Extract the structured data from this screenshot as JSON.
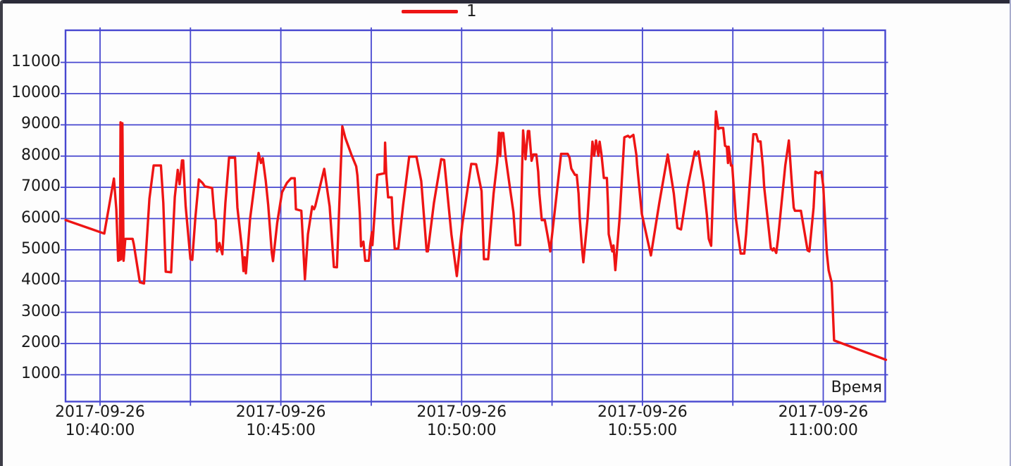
{
  "colors": {
    "series": "#ee1414",
    "grid": "#4848d0",
    "text": "#1a1a1a",
    "frame_top": "#2b2b39",
    "frame_left": "#3d3d47",
    "frame_right": "#a8accd",
    "background": "#fdfdfd"
  },
  "legend": {
    "entries": [
      {
        "label": "1",
        "color": "#ee1414"
      }
    ],
    "position": "top-center"
  },
  "chart_data": {
    "type": "line",
    "title": "",
    "xlabel": "Время",
    "ylabel": "",
    "grid": true,
    "y_axis": {
      "ticks": [
        1000,
        2000,
        3000,
        4000,
        5000,
        6000,
        7000,
        8000,
        9000,
        10000,
        11000
      ],
      "range": [
        140,
        12050
      ]
    },
    "x_axis": {
      "label": "Время",
      "minor_step_sec": 150,
      "range_sec": [
        -57,
        1304
      ],
      "ticks": [
        {
          "offset_sec": 0,
          "date": "2017-09-26",
          "time": "10:40:00"
        },
        {
          "offset_sec": 300,
          "date": "2017-09-26",
          "time": "10:45:00"
        },
        {
          "offset_sec": 600,
          "date": "2017-09-26",
          "time": "10:50:00"
        },
        {
          "offset_sec": 900,
          "date": "2017-09-26",
          "time": "10:55:00"
        },
        {
          "offset_sec": 1200,
          "date": "2017-09-26",
          "time": "11:00:00"
        }
      ]
    },
    "series": [
      {
        "name": "1",
        "color": "#ee1414",
        "points": [
          [
            -57,
            5950
          ],
          [
            7,
            5520
          ],
          [
            23,
            7280
          ],
          [
            27,
            6300
          ],
          [
            30,
            4650
          ],
          [
            33,
            4680
          ],
          [
            34,
            9080
          ],
          [
            35,
            4700
          ],
          [
            37,
            9050
          ],
          [
            39,
            4650
          ],
          [
            42,
            5350
          ],
          [
            54,
            5350
          ],
          [
            56,
            5180
          ],
          [
            66,
            3960
          ],
          [
            73,
            3920
          ],
          [
            82,
            6640
          ],
          [
            89,
            7700
          ],
          [
            101,
            7700
          ],
          [
            105,
            6500
          ],
          [
            109,
            4300
          ],
          [
            118,
            4280
          ],
          [
            124,
            6690
          ],
          [
            129,
            7560
          ],
          [
            132,
            7100
          ],
          [
            136,
            7860
          ],
          [
            138,
            7860
          ],
          [
            142,
            6400
          ],
          [
            150,
            4700
          ],
          [
            153,
            4680
          ],
          [
            158,
            6000
          ],
          [
            164,
            7250
          ],
          [
            170,
            7140
          ],
          [
            174,
            7030
          ],
          [
            186,
            6980
          ],
          [
            190,
            6020
          ],
          [
            192,
            5950
          ],
          [
            194,
            4950
          ],
          [
            198,
            5220
          ],
          [
            203,
            4860
          ],
          [
            208,
            6500
          ],
          [
            214,
            7950
          ],
          [
            224,
            7950
          ],
          [
            228,
            6350
          ],
          [
            235,
            5110
          ],
          [
            238,
            4320
          ],
          [
            240,
            4760
          ],
          [
            242,
            4250
          ],
          [
            249,
            6000
          ],
          [
            263,
            8100
          ],
          [
            267,
            7780
          ],
          [
            270,
            7930
          ],
          [
            275,
            7210
          ],
          [
            279,
            6430
          ],
          [
            285,
            4900
          ],
          [
            287,
            4640
          ],
          [
            294,
            5870
          ],
          [
            302,
            6840
          ],
          [
            310,
            7140
          ],
          [
            317,
            7290
          ],
          [
            323,
            7290
          ],
          [
            325,
            6300
          ],
          [
            334,
            6250
          ],
          [
            340,
            4060
          ],
          [
            345,
            5500
          ],
          [
            352,
            6390
          ],
          [
            355,
            6300
          ],
          [
            357,
            6390
          ],
          [
            372,
            7590
          ],
          [
            381,
            6390
          ],
          [
            388,
            4450
          ],
          [
            393,
            4440
          ],
          [
            402,
            8950
          ],
          [
            407,
            8580
          ],
          [
            417,
            8050
          ],
          [
            425,
            7670
          ],
          [
            427,
            7380
          ],
          [
            431,
            6170
          ],
          [
            433,
            5110
          ],
          [
            437,
            5260
          ],
          [
            440,
            4650
          ],
          [
            446,
            4650
          ],
          [
            448,
            5110
          ],
          [
            451,
            5560
          ],
          [
            452,
            5150
          ],
          [
            460,
            7400
          ],
          [
            472,
            7450
          ],
          [
            473,
            8430
          ],
          [
            475,
            7400
          ],
          [
            478,
            6680
          ],
          [
            484,
            6680
          ],
          [
            486,
            5850
          ],
          [
            489,
            5030
          ],
          [
            495,
            5040
          ],
          [
            503,
            6450
          ],
          [
            513,
            7980
          ],
          [
            525,
            7980
          ],
          [
            533,
            7200
          ],
          [
            542,
            4950
          ],
          [
            544,
            4950
          ],
          [
            554,
            6500
          ],
          [
            566,
            7900
          ],
          [
            571,
            7880
          ],
          [
            583,
            5500
          ],
          [
            592,
            4160
          ],
          [
            601,
            5800
          ],
          [
            616,
            7750
          ],
          [
            624,
            7740
          ],
          [
            633,
            6880
          ],
          [
            637,
            4700
          ],
          [
            644,
            4700
          ],
          [
            653,
            6800
          ],
          [
            659,
            7800
          ],
          [
            662,
            8750
          ],
          [
            664,
            8000
          ],
          [
            666,
            8740
          ],
          [
            669,
            8740
          ],
          [
            673,
            7980
          ],
          [
            680,
            7000
          ],
          [
            686,
            6200
          ],
          [
            690,
            5150
          ],
          [
            697,
            5150
          ],
          [
            702,
            8820
          ],
          [
            706,
            7900
          ],
          [
            710,
            8800
          ],
          [
            712,
            8800
          ],
          [
            716,
            7850
          ],
          [
            719,
            8050
          ],
          [
            724,
            8050
          ],
          [
            727,
            7500
          ],
          [
            729,
            6800
          ],
          [
            733,
            5950
          ],
          [
            738,
            5950
          ],
          [
            745,
            5200
          ],
          [
            747,
            4950
          ],
          [
            756,
            6500
          ],
          [
            765,
            8070
          ],
          [
            776,
            8070
          ],
          [
            779,
            7950
          ],
          [
            782,
            7600
          ],
          [
            788,
            7400
          ],
          [
            791,
            7400
          ],
          [
            794,
            6800
          ],
          [
            796,
            6000
          ],
          [
            800,
            5000
          ],
          [
            802,
            4600
          ],
          [
            809,
            6000
          ],
          [
            817,
            8460
          ],
          [
            820,
            8010
          ],
          [
            823,
            8500
          ],
          [
            827,
            8010
          ],
          [
            829,
            8460
          ],
          [
            832,
            8060
          ],
          [
            836,
            7300
          ],
          [
            841,
            7300
          ],
          [
            843,
            6400
          ],
          [
            844,
            5500
          ],
          [
            850,
            4950
          ],
          [
            852,
            5140
          ],
          [
            855,
            4350
          ],
          [
            862,
            6000
          ],
          [
            870,
            8600
          ],
          [
            876,
            8650
          ],
          [
            879,
            8600
          ],
          [
            885,
            8680
          ],
          [
            890,
            8030
          ],
          [
            891,
            7740
          ],
          [
            899,
            6150
          ],
          [
            914,
            4820
          ],
          [
            928,
            6500
          ],
          [
            942,
            8050
          ],
          [
            952,
            6800
          ],
          [
            958,
            5700
          ],
          [
            964,
            5650
          ],
          [
            975,
            7000
          ],
          [
            987,
            8150
          ],
          [
            989,
            8050
          ],
          [
            993,
            8150
          ],
          [
            996,
            7750
          ],
          [
            1001,
            7150
          ],
          [
            1007,
            6100
          ],
          [
            1010,
            5350
          ],
          [
            1014,
            5130
          ],
          [
            1022,
            9430
          ],
          [
            1026,
            8870
          ],
          [
            1029,
            8900
          ],
          [
            1034,
            8900
          ],
          [
            1037,
            8330
          ],
          [
            1040,
            8300
          ],
          [
            1042,
            7780
          ],
          [
            1043,
            8300
          ],
          [
            1047,
            7700
          ],
          [
            1049,
            7700
          ],
          [
            1055,
            6000
          ],
          [
            1063,
            4880
          ],
          [
            1069,
            4880
          ],
          [
            1072,
            5500
          ],
          [
            1084,
            8700
          ],
          [
            1089,
            8700
          ],
          [
            1092,
            8470
          ],
          [
            1096,
            8470
          ],
          [
            1100,
            7630
          ],
          [
            1102,
            7000
          ],
          [
            1113,
            5050
          ],
          [
            1116,
            4980
          ],
          [
            1118,
            5050
          ],
          [
            1122,
            4900
          ],
          [
            1125,
            5350
          ],
          [
            1137,
            7700
          ],
          [
            1143,
            8500
          ],
          [
            1148,
            7100
          ],
          [
            1151,
            6350
          ],
          [
            1153,
            6250
          ],
          [
            1163,
            6250
          ],
          [
            1174,
            4980
          ],
          [
            1177,
            4950
          ],
          [
            1184,
            6350
          ],
          [
            1187,
            7500
          ],
          [
            1192,
            7450
          ],
          [
            1197,
            7500
          ],
          [
            1200,
            7050
          ],
          [
            1206,
            4900
          ],
          [
            1209,
            4340
          ],
          [
            1214,
            3950
          ],
          [
            1218,
            2100
          ],
          [
            1304,
            1480
          ]
        ]
      }
    ]
  }
}
